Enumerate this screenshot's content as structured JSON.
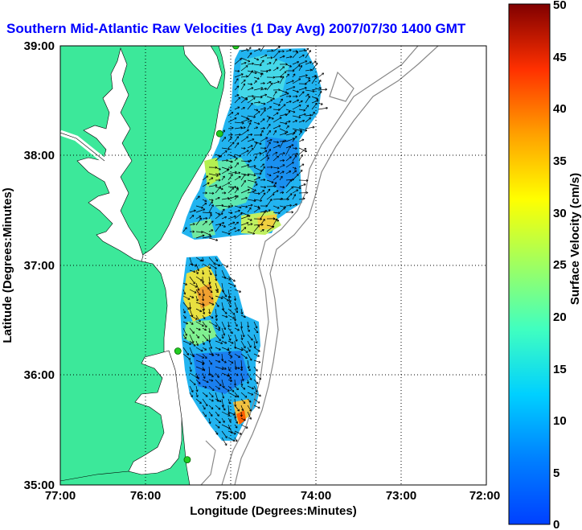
{
  "title": "Southern Mid-Atlantic Raw Velocities (1 Day Avg) 2007/07/30 1400 GMT",
  "x_axis": {
    "label": "Longitude (Degrees:Minutes)",
    "ticks": [
      "77:00",
      "76:00",
      "75:00",
      "74:00",
      "73:00",
      "72:00"
    ]
  },
  "y_axis": {
    "label": "Latitude (Degrees:Minutes)",
    "ticks": [
      "39:00",
      "38:00",
      "37:00",
      "36:00",
      "35:00"
    ]
  },
  "colorbar": {
    "label": "Surface Velocity (cm/s)",
    "ticks": [
      "50",
      "45",
      "40",
      "35",
      "30",
      "25",
      "20",
      "15",
      "10",
      "5",
      "0"
    ],
    "range": [
      0,
      50
    ],
    "colormap": "jet"
  },
  "colors": {
    "land": "#3ce89a",
    "ocean": "#ffffff",
    "title": "#0000ff",
    "grid": "#000000",
    "bathymetry": "#888888",
    "station": "#22cc22"
  },
  "map": {
    "lon_range": [
      -77,
      -72
    ],
    "lat_range": [
      35,
      39
    ],
    "grid": true,
    "stations": [
      [
        -74.94,
        39.0
      ],
      [
        -75.13,
        38.2
      ],
      [
        -75.62,
        36.22
      ],
      [
        -75.51,
        35.23
      ]
    ]
  }
}
